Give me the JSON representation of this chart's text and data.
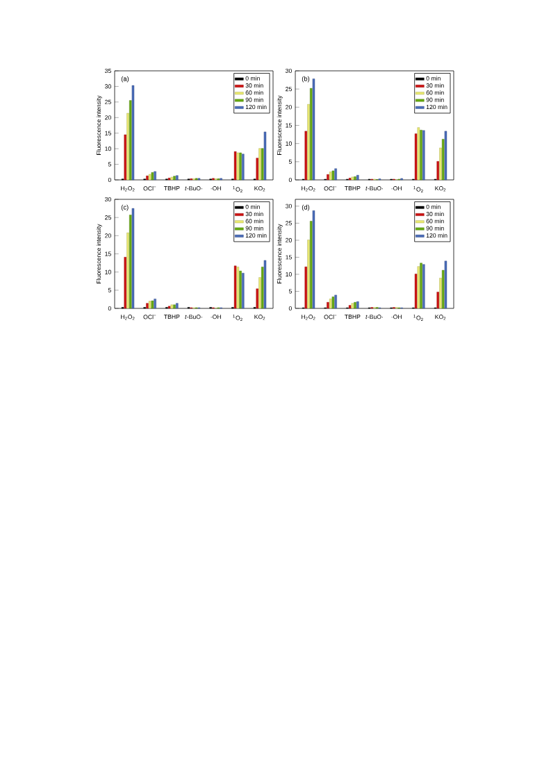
{
  "chart_data": [
    {
      "type": "bar",
      "title": "(a)",
      "ylabel": "Fluorescence intensity",
      "categories": [
        "H$_{2}$O$_{2}$",
        "OCl$^{−}$",
        "TBHP",
        "*t*-BuO·",
        "·OH",
        "$^{1}$O$_{2}$",
        "KO$_{2}$"
      ],
      "ylim": [
        0,
        35
      ],
      "yticks": [
        0,
        5,
        10,
        15,
        20,
        25,
        30,
        35
      ],
      "legend": "top right",
      "series": [
        {
          "name": "0 min",
          "color": "#000000",
          "values": [
            0.3,
            0.3,
            0.3,
            0.3,
            0.3,
            0.3,
            0.3
          ]
        },
        {
          "name": "30 min",
          "color": "#cc1111",
          "values": [
            14.5,
            1.3,
            0.6,
            0.4,
            0.5,
            9.1,
            7.0
          ]
        },
        {
          "name": "60 min",
          "color": "#e8e870",
          "values": [
            21.4,
            1.8,
            0.9,
            0.4,
            0.4,
            8.7,
            10.1
          ]
        },
        {
          "name": "90 min",
          "color": "#66aa11",
          "values": [
            25.5,
            2.4,
            1.2,
            0.5,
            0.4,
            8.7,
            10.1
          ]
        },
        {
          "name": "120 min",
          "color": "#4a6cb8",
          "values": [
            30.3,
            2.7,
            1.4,
            0.5,
            0.5,
            8.3,
            15.4
          ]
        }
      ]
    },
    {
      "type": "bar",
      "title": "(b)",
      "ylabel": "Fluorescence intensity",
      "categories": [
        "H$_{2}$O$_{2}$",
        "OCl$^{−}$",
        "TBHP",
        "*t*-BuO·",
        "·OH",
        "$^{1}$O$_{2}$",
        "KO$_{2}$"
      ],
      "ylim": [
        0,
        30
      ],
      "yticks": [
        0,
        5,
        10,
        15,
        20,
        25,
        30
      ],
      "legend": "top right",
      "series": [
        {
          "name": "0 min",
          "color": "#000000",
          "values": [
            0.2,
            0.2,
            0.2,
            0.2,
            0.2,
            0.2,
            0.2
          ]
        },
        {
          "name": "30 min",
          "color": "#cc1111",
          "values": [
            13.4,
            1.5,
            0.5,
            0.2,
            0.2,
            12.7,
            5.1
          ]
        },
        {
          "name": "60 min",
          "color": "#e8e870",
          "values": [
            20.8,
            2.2,
            0.8,
            0.2,
            0.1,
            14.4,
            8.8
          ]
        },
        {
          "name": "90 min",
          "color": "#66aa11",
          "values": [
            25.2,
            2.5,
            0.9,
            0.1,
            0.2,
            13.7,
            11.2
          ]
        },
        {
          "name": "120 min",
          "color": "#4a6cb8",
          "values": [
            27.8,
            3.1,
            1.3,
            0.3,
            0.4,
            13.6,
            13.4
          ]
        }
      ]
    },
    {
      "type": "bar",
      "title": "(c)",
      "ylabel": "Fluorescence intensity",
      "categories": [
        "H$_{2}$O$_{2}$",
        "OCl$^{−}$",
        "TBHP",
        "*t*-BuO·",
        "·OH",
        "$^{1}$O$_{2}$",
        "KO$_{2}$"
      ],
      "ylim": [
        0,
        30
      ],
      "yticks": [
        0,
        5,
        10,
        15,
        20,
        25,
        30
      ],
      "legend": "top right",
      "series": [
        {
          "name": "0 min",
          "color": "#000000",
          "values": [
            0.3,
            0.3,
            0.3,
            0.3,
            0.3,
            0.3,
            0.3
          ]
        },
        {
          "name": "30 min",
          "color": "#cc1111",
          "values": [
            14.1,
            1.4,
            0.6,
            0.2,
            0.2,
            11.7,
            5.4
          ]
        },
        {
          "name": "60 min",
          "color": "#e8e870",
          "values": [
            20.8,
            2.0,
            1.0,
            0.2,
            0.1,
            11.4,
            8.5
          ]
        },
        {
          "name": "90 min",
          "color": "#66aa11",
          "values": [
            25.7,
            2.1,
            1.0,
            0.2,
            0.2,
            10.3,
            11.4
          ]
        },
        {
          "name": "120 min",
          "color": "#4a6cb8",
          "values": [
            27.5,
            2.6,
            1.4,
            0.2,
            0.2,
            9.7,
            13.2
          ]
        }
      ]
    },
    {
      "type": "bar",
      "title": "(d)",
      "ylabel": "Fluorescence intensity",
      "categories": [
        "H$_{2}$O$_{2}$",
        "OCl$^{−}$",
        "TBHP",
        "*t*-BuO·",
        "·OH",
        "$^{1}$O$_{2}$",
        "KO$_{2}$"
      ],
      "ylim": [
        0,
        32
      ],
      "yticks": [
        0,
        5,
        10,
        15,
        20,
        25,
        30
      ],
      "legend": "top right",
      "series": [
        {
          "name": "0 min",
          "color": "#000000",
          "values": [
            0.2,
            0.2,
            0.2,
            0.2,
            0.2,
            0.2,
            0.2
          ]
        },
        {
          "name": "30 min",
          "color": "#cc1111",
          "values": [
            12.2,
            1.8,
            0.9,
            0.3,
            0.3,
            10.1,
            4.8
          ]
        },
        {
          "name": "60 min",
          "color": "#e8e870",
          "values": [
            20.1,
            2.8,
            1.5,
            0.3,
            0.3,
            12.3,
            8.9
          ]
        },
        {
          "name": "90 min",
          "color": "#66aa11",
          "values": [
            25.6,
            3.4,
            1.8,
            0.3,
            0.2,
            13.3,
            11.2
          ]
        },
        {
          "name": "120 min",
          "color": "#4a6cb8",
          "values": [
            28.7,
            3.9,
            2.0,
            0.2,
            0.2,
            12.9,
            13.9
          ]
        }
      ]
    }
  ]
}
